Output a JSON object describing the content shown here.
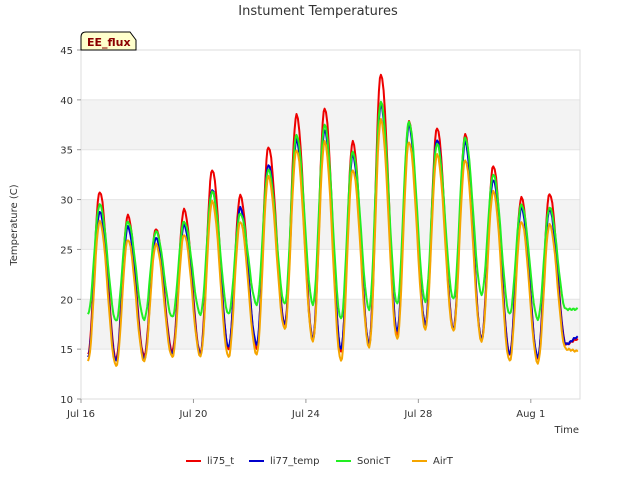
{
  "chart_data": {
    "type": "line",
    "title": "Instument Temperatures",
    "xlabel": "Time",
    "ylabel": "Temperature (C)",
    "ylim": [
      10,
      45
    ],
    "yticks": [
      10,
      15,
      20,
      25,
      30,
      35,
      40,
      45
    ],
    "xlim": [
      "2024-07-16",
      "2024-08-02T18:00"
    ],
    "xticks": [
      {
        "date": "2024-07-16",
        "label": "Jul 16"
      },
      {
        "date": "2024-07-20",
        "label": "Jul 20"
      },
      {
        "date": "2024-07-24",
        "label": "Jul 24"
      },
      {
        "date": "2024-07-28",
        "label": "Jul 28"
      },
      {
        "date": "2024-08-01",
        "label": "Aug 1"
      }
    ],
    "grid": "horizontal bands",
    "legend_position": "bottom",
    "badge": "EE_flux",
    "series": [
      {
        "name": "li75_t",
        "color": "#ee0000",
        "x": [
          "2024-07-16T06:00",
          "2024-07-16T16:00",
          "2024-07-17T06:00",
          "2024-07-17T16:00",
          "2024-07-18T06:00",
          "2024-07-18T16:00",
          "2024-07-19T06:00",
          "2024-07-19T16:00",
          "2024-07-20T06:00",
          "2024-07-20T16:00",
          "2024-07-21T06:00",
          "2024-07-21T16:00",
          "2024-07-22T06:00",
          "2024-07-22T16:00",
          "2024-07-23T06:00",
          "2024-07-23T16:00",
          "2024-07-24T06:00",
          "2024-07-24T16:00",
          "2024-07-25T06:00",
          "2024-07-25T16:00",
          "2024-07-26T06:00",
          "2024-07-26T16:00",
          "2024-07-27T06:00",
          "2024-07-27T16:00",
          "2024-07-28T06:00",
          "2024-07-28T16:00",
          "2024-07-29T06:00",
          "2024-07-29T16:00",
          "2024-07-30T06:00",
          "2024-07-30T16:00",
          "2024-07-31T06:00",
          "2024-07-31T16:00",
          "2024-08-01T06:00",
          "2024-08-01T16:00",
          "2024-08-02T06:00",
          "2024-08-02T16:00"
        ],
        "y": [
          14.5,
          30.8,
          14.0,
          28.4,
          14.3,
          27.1,
          14.8,
          29.0,
          14.6,
          33.0,
          15.0,
          30.4,
          15.0,
          35.3,
          17.5,
          38.5,
          16.0,
          39.2,
          14.8,
          35.8,
          15.5,
          42.6,
          16.5,
          37.8,
          17.5,
          37.2,
          17.0,
          36.5,
          16.0,
          33.4,
          14.5,
          30.2,
          14.0,
          30.6,
          15.5,
          16.0
        ]
      },
      {
        "name": "li77_temp",
        "color": "#0000cc",
        "x": [
          "2024-07-16T06:00",
          "2024-07-16T16:00",
          "2024-07-17T06:00",
          "2024-07-17T16:00",
          "2024-07-18T06:00",
          "2024-07-18T16:00",
          "2024-07-19T06:00",
          "2024-07-19T16:00",
          "2024-07-20T06:00",
          "2024-07-20T16:00",
          "2024-07-21T06:00",
          "2024-07-21T16:00",
          "2024-07-22T06:00",
          "2024-07-22T16:00",
          "2024-07-23T06:00",
          "2024-07-23T16:00",
          "2024-07-24T06:00",
          "2024-07-24T16:00",
          "2024-07-25T06:00",
          "2024-07-25T16:00",
          "2024-07-26T06:00",
          "2024-07-26T16:00",
          "2024-07-27T06:00",
          "2024-07-27T16:00",
          "2024-07-28T06:00",
          "2024-07-28T16:00",
          "2024-07-29T06:00",
          "2024-07-29T16:00",
          "2024-07-30T06:00",
          "2024-07-30T16:00",
          "2024-07-31T06:00",
          "2024-07-31T16:00",
          "2024-08-01T06:00",
          "2024-08-01T16:00",
          "2024-08-02T06:00",
          "2024-08-02T16:00"
        ],
        "y": [
          14.2,
          28.8,
          13.8,
          27.3,
          14.0,
          26.2,
          14.5,
          27.5,
          14.5,
          31.0,
          15.2,
          29.2,
          15.5,
          33.5,
          17.5,
          36.0,
          16.0,
          37.0,
          15.0,
          34.5,
          15.5,
          39.5,
          16.8,
          37.5,
          17.5,
          36.0,
          17.0,
          35.8,
          16.0,
          32.0,
          14.5,
          29.2,
          14.2,
          29.0,
          15.5,
          16.2
        ]
      },
      {
        "name": "SonicT",
        "color": "#22ee22",
        "x": [
          "2024-07-16T06:00",
          "2024-07-16T16:00",
          "2024-07-17T06:00",
          "2024-07-17T16:00",
          "2024-07-18T06:00",
          "2024-07-18T16:00",
          "2024-07-19T06:00",
          "2024-07-19T16:00",
          "2024-07-20T06:00",
          "2024-07-20T16:00",
          "2024-07-21T06:00",
          "2024-07-21T16:00",
          "2024-07-22T06:00",
          "2024-07-22T16:00",
          "2024-07-23T06:00",
          "2024-07-23T16:00",
          "2024-07-24T06:00",
          "2024-07-24T16:00",
          "2024-07-25T06:00",
          "2024-07-25T16:00",
          "2024-07-26T06:00",
          "2024-07-26T16:00",
          "2024-07-27T06:00",
          "2024-07-27T16:00",
          "2024-07-28T06:00",
          "2024-07-28T16:00",
          "2024-07-29T06:00",
          "2024-07-29T16:00",
          "2024-07-30T06:00",
          "2024-07-30T16:00",
          "2024-07-31T06:00",
          "2024-07-31T16:00",
          "2024-08-01T06:00",
          "2024-08-01T16:00",
          "2024-08-02T06:00",
          "2024-08-02T16:00"
        ],
        "y": [
          18.5,
          29.5,
          17.8,
          27.8,
          18.0,
          26.8,
          18.2,
          27.8,
          18.5,
          30.8,
          18.5,
          28.6,
          19.5,
          33.0,
          19.5,
          36.5,
          19.5,
          37.5,
          18.0,
          34.8,
          19.0,
          39.8,
          19.5,
          37.8,
          19.8,
          35.6,
          20.0,
          36.2,
          20.5,
          32.5,
          18.5,
          29.5,
          18.0,
          29.2,
          19.0,
          19.0
        ]
      },
      {
        "name": "AirT",
        "color": "#f5a500",
        "x": [
          "2024-07-16T06:00",
          "2024-07-16T16:00",
          "2024-07-17T06:00",
          "2024-07-17T16:00",
          "2024-07-18T06:00",
          "2024-07-18T16:00",
          "2024-07-19T06:00",
          "2024-07-19T16:00",
          "2024-07-20T06:00",
          "2024-07-20T16:00",
          "2024-07-21T06:00",
          "2024-07-21T16:00",
          "2024-07-22T06:00",
          "2024-07-22T16:00",
          "2024-07-23T06:00",
          "2024-07-23T16:00",
          "2024-07-24T06:00",
          "2024-07-24T16:00",
          "2024-07-25T06:00",
          "2024-07-25T16:00",
          "2024-07-26T06:00",
          "2024-07-26T16:00",
          "2024-07-27T06:00",
          "2024-07-27T16:00",
          "2024-07-28T06:00",
          "2024-07-28T16:00",
          "2024-07-29T06:00",
          "2024-07-29T16:00",
          "2024-07-30T06:00",
          "2024-07-30T16:00",
          "2024-07-31T06:00",
          "2024-07-31T16:00",
          "2024-08-01T06:00",
          "2024-08-01T16:00",
          "2024-08-02T06:00",
          "2024-08-02T16:00"
        ],
        "y": [
          13.8,
          27.8,
          13.3,
          26.0,
          13.8,
          25.5,
          14.2,
          26.5,
          14.3,
          29.8,
          14.2,
          27.8,
          14.5,
          32.3,
          17.0,
          35.0,
          15.8,
          35.8,
          13.8,
          33.0,
          15.2,
          38.0,
          16.0,
          35.8,
          17.0,
          34.5,
          16.8,
          34.0,
          15.8,
          30.8,
          13.8,
          27.8,
          13.6,
          27.5,
          15.0,
          14.8
        ]
      }
    ]
  }
}
